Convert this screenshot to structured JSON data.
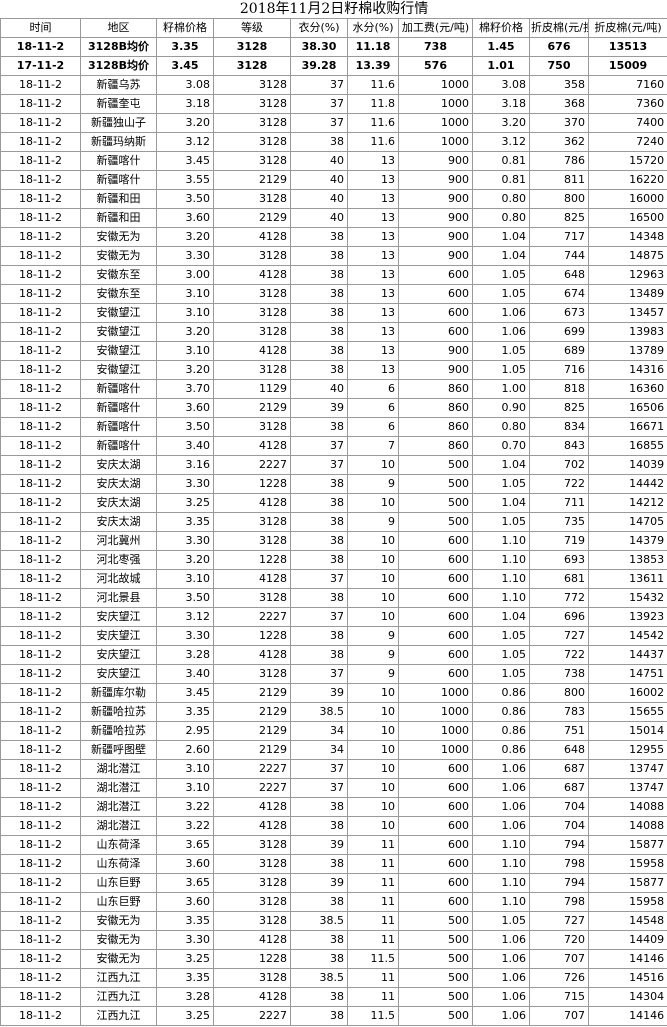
{
  "title": "2018年11月2日籽棉收购行情",
  "header": [
    "时间",
    "地区",
    "籽棉价格",
    "等级",
    "衣分(%)",
    "水分(%)",
    "加工费(元/吨)",
    "棉籽价格",
    "折皮棉(元/担)",
    "折皮棉(元/吨)"
  ],
  "summary_rows": [
    [
      "18-11-2",
      "3128B均价",
      "3.35",
      "3128",
      "38.30",
      "11.18",
      "738",
      "1.45",
      "676",
      "13513"
    ],
    [
      "17-11-2",
      "3128B均价",
      "3.45",
      "3128",
      "39.28",
      "13.39",
      "576",
      "1.01",
      "750",
      "15009"
    ]
  ],
  "rows": [
    [
      "18-11-2",
      "新疆乌苏",
      "3.08",
      "3128",
      "37",
      "11.6",
      "1000",
      "3.08",
      "358",
      "7160"
    ],
    [
      "18-11-2",
      "新疆奎屯",
      "3.18",
      "3128",
      "37",
      "11.8",
      "1000",
      "3.18",
      "368",
      "7360"
    ],
    [
      "18-11-2",
      "新疆独山子",
      "3.20",
      "3128",
      "37",
      "11.6",
      "1000",
      "3.20",
      "370",
      "7400"
    ],
    [
      "18-11-2",
      "新疆玛纳斯",
      "3.12",
      "3128",
      "38",
      "11.6",
      "1000",
      "3.12",
      "362",
      "7240"
    ],
    [
      "18-11-2",
      "新疆喀什",
      "3.45",
      "3128",
      "40",
      "13",
      "900",
      "0.81",
      "786",
      "15720"
    ],
    [
      "18-11-2",
      "新疆喀什",
      "3.55",
      "2129",
      "40",
      "13",
      "900",
      "0.81",
      "811",
      "16220"
    ],
    [
      "18-11-2",
      "新疆和田",
      "3.50",
      "3128",
      "40",
      "13",
      "900",
      "0.80",
      "800",
      "16000"
    ],
    [
      "18-11-2",
      "新疆和田",
      "3.60",
      "2129",
      "40",
      "13",
      "900",
      "0.80",
      "825",
      "16500"
    ],
    [
      "18-11-2",
      "安徽无为",
      "3.20",
      "4128",
      "38",
      "13",
      "900",
      "1.04",
      "717",
      "14348"
    ],
    [
      "18-11-2",
      "安徽无为",
      "3.30",
      "3128",
      "38",
      "13",
      "900",
      "1.04",
      "744",
      "14875"
    ],
    [
      "18-11-2",
      "安徽东至",
      "3.00",
      "4128",
      "38",
      "13",
      "600",
      "1.05",
      "648",
      "12963"
    ],
    [
      "18-11-2",
      "安徽东至",
      "3.10",
      "3128",
      "38",
      "13",
      "600",
      "1.05",
      "674",
      "13489"
    ],
    [
      "18-11-2",
      "安徽望江",
      "3.10",
      "3128",
      "38",
      "13",
      "600",
      "1.06",
      "673",
      "13457"
    ],
    [
      "18-11-2",
      "安徽望江",
      "3.20",
      "3128",
      "38",
      "13",
      "600",
      "1.06",
      "699",
      "13983"
    ],
    [
      "18-11-2",
      "安徽望江",
      "3.10",
      "4128",
      "38",
      "13",
      "900",
      "1.05",
      "689",
      "13789"
    ],
    [
      "18-11-2",
      "安徽望江",
      "3.20",
      "3128",
      "38",
      "13",
      "900",
      "1.05",
      "716",
      "14316"
    ],
    [
      "18-11-2",
      "新疆喀什",
      "3.70",
      "1129",
      "40",
      "6",
      "860",
      "1.00",
      "818",
      "16360"
    ],
    [
      "18-11-2",
      "新疆喀什",
      "3.60",
      "2129",
      "39",
      "6",
      "860",
      "0.90",
      "825",
      "16506"
    ],
    [
      "18-11-2",
      "新疆喀什",
      "3.50",
      "3128",
      "38",
      "6",
      "860",
      "0.80",
      "834",
      "16671"
    ],
    [
      "18-11-2",
      "新疆喀什",
      "3.40",
      "4128",
      "37",
      "7",
      "860",
      "0.70",
      "843",
      "16855"
    ],
    [
      "18-11-2",
      "安庆太湖",
      "3.16",
      "2227",
      "37",
      "10",
      "500",
      "1.04",
      "702",
      "14039"
    ],
    [
      "18-11-2",
      "安庆太湖",
      "3.30",
      "1228",
      "38",
      "9",
      "500",
      "1.05",
      "722",
      "14442"
    ],
    [
      "18-11-2",
      "安庆太湖",
      "3.25",
      "4128",
      "38",
      "10",
      "500",
      "1.04",
      "711",
      "14212"
    ],
    [
      "18-11-2",
      "安庆太湖",
      "3.35",
      "3128",
      "38",
      "9",
      "500",
      "1.05",
      "735",
      "14705"
    ],
    [
      "18-11-2",
      "河北冀州",
      "3.30",
      "3128",
      "38",
      "10",
      "600",
      "1.10",
      "719",
      "14379"
    ],
    [
      "18-11-2",
      "河北枣强",
      "3.20",
      "1228",
      "38",
      "10",
      "600",
      "1.10",
      "693",
      "13853"
    ],
    [
      "18-11-2",
      "河北故城",
      "3.10",
      "4128",
      "37",
      "10",
      "600",
      "1.10",
      "681",
      "13611"
    ],
    [
      "18-11-2",
      "河北景县",
      "3.50",
      "3128",
      "38",
      "10",
      "600",
      "1.10",
      "772",
      "15432"
    ],
    [
      "18-11-2",
      "安庆望江",
      "3.12",
      "2227",
      "37",
      "10",
      "600",
      "1.04",
      "696",
      "13923"
    ],
    [
      "18-11-2",
      "安庆望江",
      "3.30",
      "1228",
      "38",
      "9",
      "600",
      "1.05",
      "727",
      "14542"
    ],
    [
      "18-11-2",
      "安庆望江",
      "3.28",
      "4128",
      "38",
      "9",
      "600",
      "1.05",
      "722",
      "14437"
    ],
    [
      "18-11-2",
      "安庆望江",
      "3.40",
      "3128",
      "37",
      "9",
      "600",
      "1.05",
      "738",
      "14751"
    ],
    [
      "18-11-2",
      "新疆库尔勒",
      "3.45",
      "2129",
      "39",
      "10",
      "1000",
      "0.86",
      "800",
      "16002"
    ],
    [
      "18-11-2",
      "新疆哈拉苏",
      "3.35",
      "2129",
      "38.5",
      "10",
      "1000",
      "0.86",
      "783",
      "15655"
    ],
    [
      "18-11-2",
      "新疆哈拉苏",
      "2.95",
      "2129",
      "34",
      "10",
      "1000",
      "0.86",
      "751",
      "15014"
    ],
    [
      "18-11-2",
      "新疆呼图壁",
      "2.60",
      "2129",
      "34",
      "10",
      "1000",
      "0.86",
      "648",
      "12955"
    ],
    [
      "18-11-2",
      "湖北潜江",
      "3.10",
      "2227",
      "37",
      "10",
      "600",
      "1.06",
      "687",
      "13747"
    ],
    [
      "18-11-2",
      "湖北潜江",
      "3.10",
      "2227",
      "37",
      "10",
      "600",
      "1.06",
      "687",
      "13747"
    ],
    [
      "18-11-2",
      "湖北潜江",
      "3.22",
      "4128",
      "38",
      "10",
      "600",
      "1.06",
      "704",
      "14088"
    ],
    [
      "18-11-2",
      "湖北潜江",
      "3.22",
      "4128",
      "38",
      "10",
      "600",
      "1.06",
      "704",
      "14088"
    ],
    [
      "18-11-2",
      "山东荷泽",
      "3.65",
      "3128",
      "39",
      "11",
      "600",
      "1.10",
      "794",
      "15877"
    ],
    [
      "18-11-2",
      "山东荷泽",
      "3.60",
      "3128",
      "38",
      "11",
      "600",
      "1.10",
      "798",
      "15958"
    ],
    [
      "18-11-2",
      "山东巨野",
      "3.65",
      "3128",
      "39",
      "11",
      "600",
      "1.10",
      "794",
      "15877"
    ],
    [
      "18-11-2",
      "山东巨野",
      "3.60",
      "3128",
      "38",
      "11",
      "600",
      "1.10",
      "798",
      "15958"
    ],
    [
      "18-11-2",
      "安徽无为",
      "3.35",
      "3128",
      "38.5",
      "11",
      "500",
      "1.05",
      "727",
      "14548"
    ],
    [
      "18-11-2",
      "安徽无为",
      "3.30",
      "4128",
      "38",
      "11",
      "500",
      "1.06",
      "720",
      "14409"
    ],
    [
      "18-11-2",
      "安徽无为",
      "3.25",
      "1228",
      "38",
      "11.5",
      "500",
      "1.06",
      "707",
      "14146"
    ],
    [
      "18-11-2",
      "江西九江",
      "3.35",
      "3128",
      "38.5",
      "11",
      "500",
      "1.06",
      "726",
      "14516"
    ],
    [
      "18-11-2",
      "江西九江",
      "3.28",
      "4128",
      "38",
      "11",
      "500",
      "1.06",
      "715",
      "14304"
    ],
    [
      "18-11-2",
      "江西九江",
      "3.25",
      "2227",
      "38",
      "11.5",
      "500",
      "1.06",
      "707",
      "14146"
    ]
  ]
}
